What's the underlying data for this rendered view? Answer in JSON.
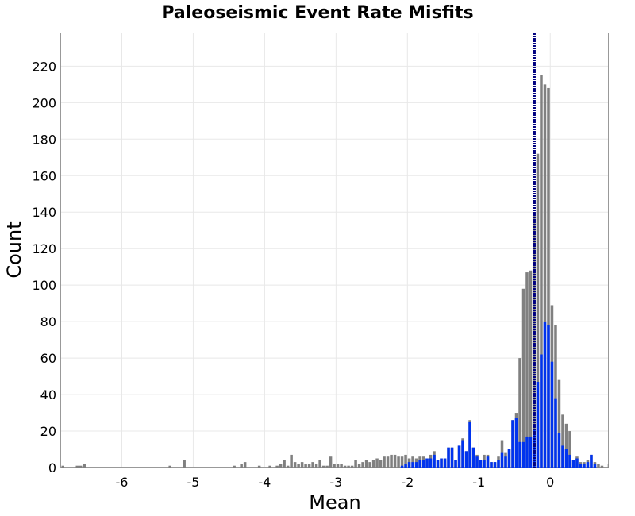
{
  "chart_data": {
    "type": "bar",
    "title": "Paleoseismic Event Rate Misfits",
    "xlabel": "Mean",
    "ylabel": "Count",
    "xlim": [
      -6.85,
      0.82
    ],
    "ylim": [
      0,
      238
    ],
    "x_ticks": [
      -6,
      -5,
      -4,
      -3,
      -2,
      -1,
      0
    ],
    "y_ticks": [
      0,
      20,
      40,
      60,
      80,
      100,
      120,
      140,
      160,
      180,
      200,
      220
    ],
    "grid": true,
    "bin_width": 0.05,
    "vline": {
      "x": -0.22,
      "style": "dotted",
      "color": "#000080"
    },
    "series": [
      {
        "color": "#808080",
        "bins": [
          [
            -6.85,
            1
          ],
          [
            -6.65,
            1
          ],
          [
            -6.6,
            1
          ],
          [
            -6.55,
            2
          ],
          [
            -5.35,
            1
          ],
          [
            -5.15,
            4
          ],
          [
            -4.45,
            1
          ],
          [
            -4.35,
            2
          ],
          [
            -4.3,
            3
          ],
          [
            -4.1,
            1
          ],
          [
            -3.95,
            1
          ],
          [
            -3.85,
            1
          ],
          [
            -3.8,
            2
          ],
          [
            -3.75,
            4
          ],
          [
            -3.7,
            1
          ],
          [
            -3.65,
            7
          ],
          [
            -3.6,
            3
          ],
          [
            -3.55,
            2
          ],
          [
            -3.5,
            3
          ],
          [
            -3.45,
            2
          ],
          [
            -3.4,
            2
          ],
          [
            -3.35,
            3
          ],
          [
            -3.3,
            2
          ],
          [
            -3.25,
            4
          ],
          [
            -3.2,
            1
          ],
          [
            -3.15,
            1
          ],
          [
            -3.1,
            6
          ],
          [
            -3.05,
            2
          ],
          [
            -3.0,
            2
          ],
          [
            -2.95,
            2
          ],
          [
            -2.9,
            1
          ],
          [
            -2.85,
            1
          ],
          [
            -2.8,
            1
          ],
          [
            -2.75,
            4
          ],
          [
            -2.7,
            2
          ],
          [
            -2.65,
            3
          ],
          [
            -2.6,
            4
          ],
          [
            -2.55,
            3
          ],
          [
            -2.5,
            4
          ],
          [
            -2.45,
            5
          ],
          [
            -2.4,
            4
          ],
          [
            -2.35,
            6
          ],
          [
            -2.3,
            6
          ],
          [
            -2.25,
            7
          ],
          [
            -2.2,
            7
          ],
          [
            -2.15,
            6
          ],
          [
            -2.1,
            6
          ],
          [
            -2.05,
            7
          ],
          [
            -2.0,
            5
          ],
          [
            -1.95,
            6
          ],
          [
            -1.9,
            5
          ],
          [
            -1.85,
            6
          ],
          [
            -1.8,
            6
          ],
          [
            -1.75,
            5
          ],
          [
            -1.7,
            7
          ],
          [
            -1.65,
            9
          ],
          [
            -1.6,
            4
          ],
          [
            -1.55,
            5
          ],
          [
            -1.5,
            5
          ],
          [
            -1.45,
            11
          ],
          [
            -1.4,
            11
          ],
          [
            -1.35,
            4
          ],
          [
            -1.3,
            12
          ],
          [
            -1.25,
            16
          ],
          [
            -1.2,
            9
          ],
          [
            -1.15,
            26
          ],
          [
            -1.1,
            11
          ],
          [
            -1.05,
            7
          ],
          [
            -1.0,
            4
          ],
          [
            -0.95,
            7
          ],
          [
            -0.9,
            7
          ],
          [
            -0.85,
            3
          ],
          [
            -0.8,
            3
          ],
          [
            -0.75,
            6
          ],
          [
            -0.7,
            15
          ],
          [
            -0.65,
            8
          ],
          [
            -0.6,
            10
          ],
          [
            -0.55,
            26
          ],
          [
            -0.5,
            30
          ],
          [
            -0.45,
            60
          ],
          [
            -0.4,
            98
          ],
          [
            -0.35,
            107
          ],
          [
            -0.3,
            108
          ],
          [
            -0.25,
            139
          ],
          [
            -0.2,
            172
          ],
          [
            -0.15,
            215
          ],
          [
            -0.1,
            210
          ],
          [
            -0.05,
            208
          ],
          [
            0.0,
            89
          ],
          [
            0.05,
            78
          ],
          [
            0.1,
            48
          ],
          [
            0.15,
            29
          ],
          [
            0.2,
            24
          ],
          [
            0.25,
            20
          ],
          [
            0.3,
            4
          ],
          [
            0.35,
            6
          ],
          [
            0.4,
            3
          ],
          [
            0.45,
            3
          ],
          [
            0.5,
            4
          ],
          [
            0.55,
            7
          ],
          [
            0.6,
            3
          ],
          [
            0.65,
            2
          ],
          [
            0.7,
            1
          ],
          [
            0.8,
            2
          ]
        ]
      },
      {
        "color": "#0033ee",
        "bins": [
          [
            -2.1,
            1
          ],
          [
            -2.05,
            2
          ],
          [
            -2.0,
            3
          ],
          [
            -1.95,
            3
          ],
          [
            -1.9,
            3
          ],
          [
            -1.85,
            4
          ],
          [
            -1.8,
            4
          ],
          [
            -1.75,
            5
          ],
          [
            -1.7,
            5
          ],
          [
            -1.65,
            7
          ],
          [
            -1.6,
            4
          ],
          [
            -1.55,
            5
          ],
          [
            -1.5,
            5
          ],
          [
            -1.45,
            11
          ],
          [
            -1.4,
            11
          ],
          [
            -1.35,
            4
          ],
          [
            -1.3,
            12
          ],
          [
            -1.25,
            15
          ],
          [
            -1.2,
            9
          ],
          [
            -1.15,
            25
          ],
          [
            -1.1,
            11
          ],
          [
            -1.05,
            6
          ],
          [
            -1.0,
            4
          ],
          [
            -0.95,
            4
          ],
          [
            -0.9,
            6
          ],
          [
            -0.85,
            3
          ],
          [
            -0.8,
            3
          ],
          [
            -0.75,
            4
          ],
          [
            -0.7,
            8
          ],
          [
            -0.65,
            6
          ],
          [
            -0.6,
            10
          ],
          [
            -0.55,
            26
          ],
          [
            -0.5,
            27
          ],
          [
            -0.45,
            14
          ],
          [
            -0.4,
            14
          ],
          [
            -0.35,
            17
          ],
          [
            -0.3,
            17
          ],
          [
            -0.25,
            21
          ],
          [
            -0.2,
            47
          ],
          [
            -0.15,
            62
          ],
          [
            -0.1,
            80
          ],
          [
            -0.05,
            78
          ],
          [
            0.0,
            58
          ],
          [
            0.05,
            38
          ],
          [
            0.1,
            19
          ],
          [
            0.15,
            12
          ],
          [
            0.2,
            10
          ],
          [
            0.25,
            7
          ],
          [
            0.3,
            4
          ],
          [
            0.35,
            5
          ],
          [
            0.4,
            2
          ],
          [
            0.45,
            2
          ],
          [
            0.5,
            3
          ],
          [
            0.55,
            7
          ],
          [
            0.6,
            2
          ]
        ]
      }
    ]
  }
}
